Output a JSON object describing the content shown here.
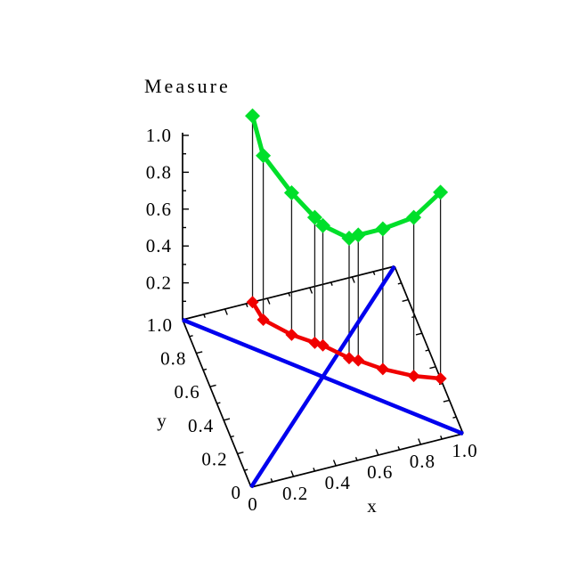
{
  "figure_title": "Measure",
  "colors": {
    "background": "#ffffff",
    "axis": "#000000",
    "stem": "#1a1a1a",
    "base_curve": "#f00000",
    "measure_curve": "#00df2a",
    "diagonal": "#0000ee",
    "text": "#000000"
  },
  "axes": {
    "x": {
      "label": "x",
      "tick_labels": [
        "0",
        "0.2",
        "0.4",
        "0.6",
        "0.8",
        "1.0"
      ],
      "tick_values": [
        0,
        0.2,
        0.4,
        0.6,
        0.8,
        1
      ],
      "minor_step": 0.1,
      "range": [
        0,
        1
      ]
    },
    "y": {
      "label": "y",
      "tick_labels": [
        "0",
        "0.2",
        "0.4",
        "0.6",
        "0.8",
        "1.0"
      ],
      "tick_values": [
        0,
        0.2,
        0.4,
        0.6,
        0.8,
        1
      ],
      "minor_step": 0.1,
      "range": [
        0,
        1
      ]
    },
    "measure": {
      "label": "Measure",
      "tick_labels": [
        "0.2",
        "0.4",
        "0.6",
        "0.8",
        "1.0"
      ],
      "tick_values": [
        0.2,
        0.4,
        0.6,
        0.8,
        1
      ],
      "minor_step": 0.1,
      "range": [
        0,
        1
      ]
    }
  },
  "chart_data": {
    "type": "line",
    "projection": "3d-over-unit-square",
    "title": "Measure",
    "xlabel": "x",
    "ylabel": "y",
    "zlabel": "Measure",
    "xlim": [
      0,
      1
    ],
    "ylim": [
      0,
      1
    ],
    "zlim": [
      0,
      1
    ],
    "grid": false,
    "legend": false,
    "diagonals": [
      {
        "name": "diagonal-y-equals-x",
        "from": [
          0,
          0
        ],
        "to": [
          1,
          1
        ]
      },
      {
        "name": "diagonal-y-equals-one-minus-x",
        "from": [
          0,
          1
        ],
        "to": [
          1,
          0
        ]
      }
    ],
    "points": [
      {
        "x": 0.33,
        "y": 1.0,
        "measure": 1.01
      },
      {
        "x": 0.345,
        "y": 0.89,
        "measure": 0.89
      },
      {
        "x": 0.44,
        "y": 0.77,
        "measure": 0.77
      },
      {
        "x": 0.525,
        "y": 0.695,
        "measure": 0.68
      },
      {
        "x": 0.555,
        "y": 0.67,
        "measure": 0.65
      },
      {
        "x": 0.645,
        "y": 0.565,
        "measure": 0.65
      },
      {
        "x": 0.68,
        "y": 0.54,
        "measure": 0.68
      },
      {
        "x": 0.77,
        "y": 0.46,
        "measure": 0.76
      },
      {
        "x": 0.89,
        "y": 0.38,
        "measure": 0.86
      },
      {
        "x": 1.0,
        "y": 0.33,
        "measure": 1.01
      }
    ],
    "series_notes": {
      "base_path": "red curve with diamond markers drawn on the x-y base plane",
      "measure_curve": "green curve with diamond markers at height = measure above each base point",
      "stems": "thin vertical black lines connect each base point to its measure point"
    }
  }
}
